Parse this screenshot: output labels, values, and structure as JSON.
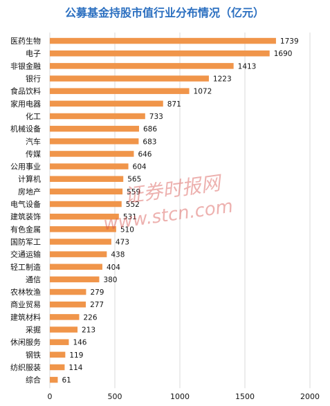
{
  "chart_data": {
    "type": "bar",
    "orientation": "horizontal",
    "title": "公募基金持股市值行业分布情况（亿元）",
    "categories": [
      "医药生物",
      "电子",
      "非银金融",
      "银行",
      "食品饮料",
      "家用电器",
      "化工",
      "机械设备",
      "汽车",
      "传媒",
      "公用事业",
      "计算机",
      "房地产",
      "电气设备",
      "建筑装饰",
      "有色金属",
      "国防军工",
      "交通运输",
      "轻工制造",
      "通信",
      "农林牧渔",
      "商业贸易",
      "建筑材料",
      "采掘",
      "休闲服务",
      "钢铁",
      "纺织服装",
      "综合"
    ],
    "values": [
      1739,
      1690,
      1413,
      1223,
      1072,
      871,
      733,
      686,
      683,
      646,
      604,
      565,
      559,
      552,
      531,
      510,
      473,
      438,
      404,
      380,
      279,
      277,
      226,
      213,
      146,
      119,
      114,
      61
    ],
    "xlim": [
      0,
      2000
    ],
    "xticks": [
      "0",
      "500",
      "1000",
      "1500",
      "2000"
    ],
    "grid": true,
    "bar_color": "#f0954a",
    "grid_color": "#d9d9d9"
  },
  "watermark": {
    "line1": "证券时报网",
    "line2": "www.stcn.com"
  }
}
